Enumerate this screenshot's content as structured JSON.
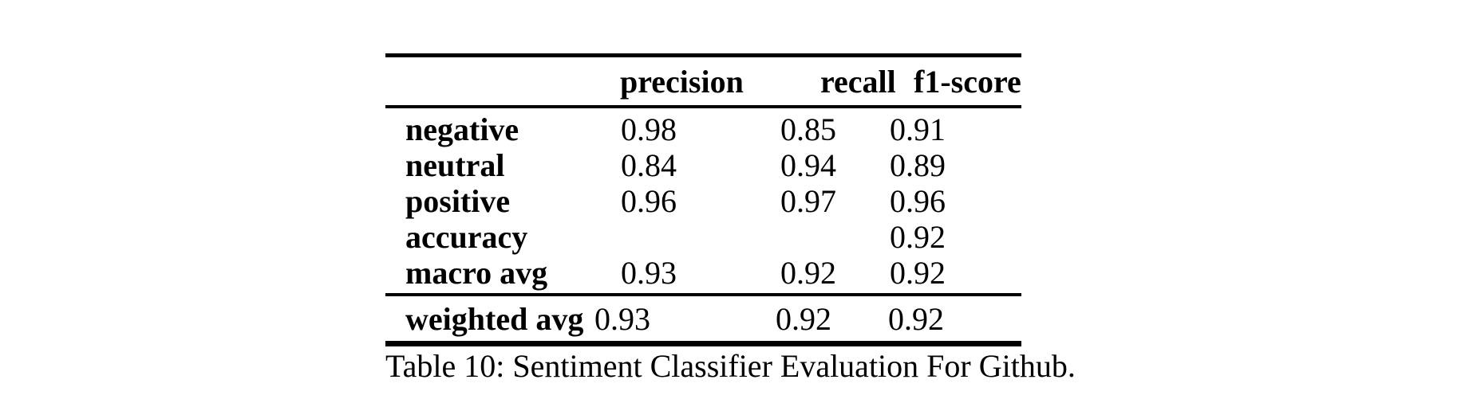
{
  "table": {
    "columns": [
      "",
      "precision",
      "recall",
      "f1-score"
    ],
    "rows": [
      {
        "label": "negative",
        "precision": "0.98",
        "recall": "0.85",
        "f1": "0.91"
      },
      {
        "label": "neutral",
        "precision": "0.84",
        "recall": "0.94",
        "f1": "0.89"
      },
      {
        "label": "positive",
        "precision": "0.96",
        "recall": "0.97",
        "f1": "0.96"
      },
      {
        "label": "accuracy",
        "precision": "",
        "recall": "",
        "f1": "0.92"
      },
      {
        "label": "macro avg",
        "precision": "0.93",
        "recall": "0.92",
        "f1": "0.92"
      }
    ],
    "footer": {
      "label": "weighted avg",
      "precision": "0.93",
      "recall": "0.92",
      "f1": "0.92"
    }
  },
  "caption": "Table 10: Sentiment Classifier Evaluation For Github.",
  "colors": {
    "text": "#000000",
    "background": "#ffffff",
    "rule": "#000000"
  }
}
